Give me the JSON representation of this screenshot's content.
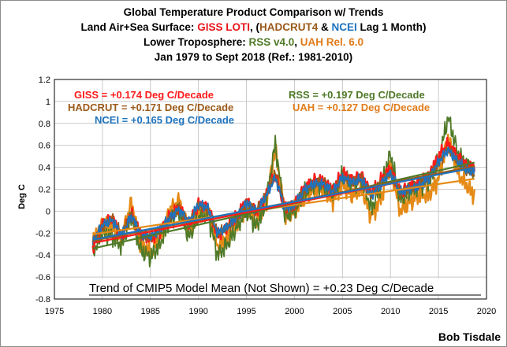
{
  "header": {
    "line1": "Global Temperature Product Comparison w/ Trends",
    "line2_pre": "Land Air+Sea Surface: ",
    "line2_giss": "GISS LOTI",
    "line2_mid1": ", (",
    "line2_had": "HADCRUT4",
    "line2_mid2": " & ",
    "line2_ncei": "NCEI",
    "line2_post": " Lag 1 Month)",
    "line3_pre": "Lower Troposphere: ",
    "line3_rss": "RSS v4.0",
    "line3_mid": ", ",
    "line3_uah": "UAH Rel. 6.0",
    "line4": "Jan 1979 to Sept 2018 (Ref.: 1981-2010)"
  },
  "signature": "Bob Tisdale",
  "colors": {
    "giss": "#ff1a1a",
    "hadcrut": "#9b5a1a",
    "ncei": "#1e73be",
    "rss": "#4f7a28",
    "uah": "#e58a16",
    "trend_text": "#000000"
  },
  "chart_data": {
    "type": "line",
    "ylabel": "Deg C",
    "xlim": [
      1975,
      2020
    ],
    "ylim": [
      -0.8,
      1.2
    ],
    "x_ticks": [
      1975,
      1980,
      1985,
      1990,
      1995,
      2000,
      2005,
      2010,
      2015,
      2020
    ],
    "y_ticks": [
      -0.8,
      -0.6,
      -0.4,
      -0.2,
      0,
      0.2,
      0.4,
      0.6,
      0.8,
      1,
      1.2
    ],
    "grid": true,
    "x_start": 1979.0,
    "x_end": 2018.75,
    "anchor_x": [
      1979.0,
      1980.0,
      1981.0,
      1982.0,
      1983.0,
      1984.0,
      1985.0,
      1986.0,
      1987.0,
      1988.0,
      1989.0,
      1990.0,
      1991.0,
      1992.0,
      1993.0,
      1994.0,
      1995.0,
      1996.0,
      1997.0,
      1998.0,
      1999.0,
      2000.0,
      2001.0,
      2002.0,
      2003.0,
      2004.0,
      2005.0,
      2006.0,
      2007.0,
      2008.0,
      2009.0,
      2010.0,
      2011.0,
      2012.0,
      2013.0,
      2014.0,
      2015.0,
      2016.0,
      2017.0,
      2018.0,
      2018.75
    ],
    "series": [
      {
        "name": "GISS",
        "color": "#ff1a1a",
        "trend_label": "GISS = +0.174 Deg C/Decade",
        "trend": 0.174,
        "trend_start": -0.29,
        "values": [
          -0.33,
          -0.12,
          -0.06,
          -0.23,
          -0.02,
          -0.22,
          -0.25,
          -0.18,
          -0.05,
          0.03,
          -0.12,
          0.07,
          0.03,
          -0.22,
          -0.15,
          -0.05,
          0.09,
          0.0,
          0.15,
          0.33,
          0.03,
          0.06,
          0.21,
          0.28,
          0.28,
          0.19,
          0.35,
          0.29,
          0.33,
          0.16,
          0.28,
          0.39,
          0.18,
          0.23,
          0.26,
          0.33,
          0.5,
          0.62,
          0.5,
          0.41,
          0.4
        ]
      },
      {
        "name": "HADCRUT",
        "color": "#9b5a1a",
        "trend_label": "HADCRUT = +0.171 Deg C/Decade",
        "trend": 0.171,
        "trend_start": -0.27,
        "values": [
          -0.29,
          -0.13,
          -0.07,
          -0.21,
          -0.03,
          -0.22,
          -0.24,
          -0.18,
          -0.06,
          0.02,
          -0.11,
          0.06,
          0.02,
          -0.21,
          -0.15,
          -0.06,
          0.08,
          -0.01,
          0.14,
          0.35,
          0.03,
          0.05,
          0.19,
          0.25,
          0.26,
          0.18,
          0.32,
          0.27,
          0.29,
          0.14,
          0.26,
          0.35,
          0.17,
          0.2,
          0.24,
          0.3,
          0.44,
          0.57,
          0.45,
          0.36,
          0.35
        ]
      },
      {
        "name": "NCEI",
        "color": "#1e73be",
        "trend_label": "NCEI = +0.165 Deg C/Decade",
        "trend": 0.165,
        "trend_start": -0.26,
        "values": [
          -0.28,
          -0.13,
          -0.08,
          -0.22,
          -0.04,
          -0.21,
          -0.23,
          -0.17,
          -0.06,
          0.02,
          -0.1,
          0.06,
          0.03,
          -0.2,
          -0.14,
          -0.05,
          0.08,
          -0.01,
          0.13,
          0.31,
          0.03,
          0.05,
          0.19,
          0.25,
          0.25,
          0.18,
          0.31,
          0.26,
          0.29,
          0.14,
          0.25,
          0.35,
          0.17,
          0.2,
          0.23,
          0.3,
          0.45,
          0.56,
          0.45,
          0.37,
          0.36
        ]
      },
      {
        "name": "RSS",
        "color": "#4f7a28",
        "trend_label": "RSS = +0.197 Deg C/Decade",
        "trend": 0.197,
        "trend_start": -0.34,
        "values": [
          -0.38,
          -0.2,
          -0.22,
          -0.32,
          -0.05,
          -0.36,
          -0.42,
          -0.3,
          -0.08,
          0.0,
          -0.24,
          -0.05,
          -0.04,
          -0.4,
          -0.3,
          -0.15,
          0.0,
          -0.14,
          0.05,
          0.62,
          -0.05,
          0.0,
          0.16,
          0.26,
          0.24,
          0.15,
          0.33,
          0.24,
          0.3,
          0.02,
          0.24,
          0.52,
          0.1,
          0.18,
          0.25,
          0.26,
          0.45,
          0.86,
          0.53,
          0.42,
          0.33
        ]
      },
      {
        "name": "UAH",
        "color": "#e58a16",
        "trend_label": "UAH = +0.127 Deg C/Decade",
        "trend": 0.127,
        "trend_start": -0.21,
        "values": [
          -0.28,
          -0.12,
          -0.15,
          -0.25,
          0.08,
          -0.3,
          -0.38,
          -0.25,
          0.0,
          0.1,
          -0.2,
          -0.02,
          0.0,
          -0.32,
          -0.25,
          -0.1,
          0.05,
          -0.1,
          0.05,
          0.58,
          -0.04,
          0.0,
          0.12,
          0.2,
          0.2,
          0.1,
          0.25,
          0.14,
          0.2,
          -0.05,
          0.12,
          0.42,
          0.0,
          0.08,
          0.15,
          0.15,
          0.3,
          0.66,
          0.35,
          0.22,
          0.15
        ]
      }
    ],
    "annotations": {
      "giss": "GISS = +0.174 Deg C/Decade",
      "hadcrut": "HADCRUT = +0.171 Deg C/Decade",
      "ncei": "NCEI = +0.165 Deg C/Decade",
      "rss": "RSS = +0.197 Deg C/Decade",
      "uah": "UAH = +0.127 Deg C/Decade",
      "cmip5": "Trend of CMIP5 Model Mean (Not Shown) = +0.23 Deg C/Decade"
    }
  }
}
